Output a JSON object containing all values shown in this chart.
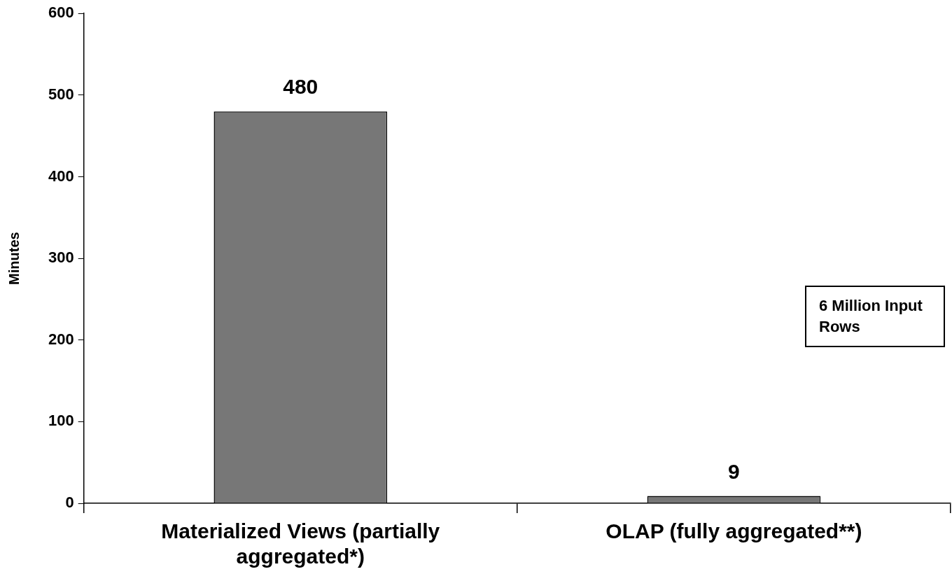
{
  "chart_data": {
    "type": "bar",
    "ylabel": "Minutes",
    "categories": [
      "Materialized Views (partially aggregated*)",
      "OLAP (fully aggregated**)"
    ],
    "values": [
      480,
      9
    ],
    "color": "#777777",
    "ylim": [
      0,
      600
    ],
    "yticks": [
      0,
      100,
      200,
      300,
      400,
      500,
      600
    ],
    "grid": false,
    "data_labels": true,
    "annotations": [
      "6 Million Input Rows"
    ]
  }
}
